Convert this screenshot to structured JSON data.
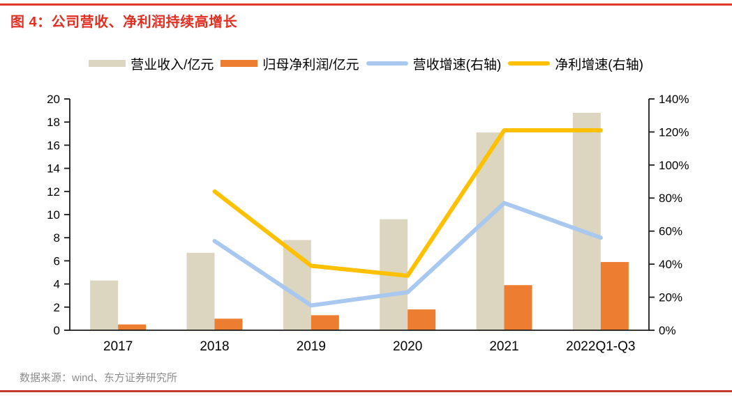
{
  "title": {
    "text": "图 4：公司营收、净利润持续高增长"
  },
  "legend": [
    {
      "id": "legend-revenue-bar",
      "label": "营业收入/亿元",
      "type": "bar",
      "color": "#dcd5bf"
    },
    {
      "id": "legend-net-profit-bar",
      "label": "归母净利润/亿元",
      "type": "bar",
      "color": "#ed7d31"
    },
    {
      "id": "legend-revenue-growth-line",
      "label": "营收增速(右轴)",
      "type": "line",
      "color": "#a9c8f0"
    },
    {
      "id": "legend-profit-growth-line",
      "label": "净利增速(右轴)",
      "type": "line",
      "color": "#ffc000"
    }
  ],
  "chart_data": {
    "type": "bar",
    "subtype": "combo-dual-axis",
    "categories": [
      "2017",
      "2018",
      "2019",
      "2020",
      "2021",
      "2022Q1-Q3"
    ],
    "series": [
      {
        "id": "revenue-bars",
        "name": "营业收入/亿元",
        "type": "bar",
        "axis": "left",
        "color": "#dcd5bf",
        "values": [
          4.3,
          6.7,
          7.8,
          9.6,
          17.1,
          18.8
        ]
      },
      {
        "id": "profit-bars",
        "name": "归母净利润/亿元",
        "type": "bar",
        "axis": "left",
        "color": "#ed7d31",
        "values": [
          0.5,
          1.0,
          1.3,
          1.8,
          3.9,
          5.9
        ]
      },
      {
        "id": "revenue-growth-line",
        "name": "营收增速(右轴)",
        "type": "line",
        "axis": "right",
        "color": "#a9c8f0",
        "values": [
          null,
          54,
          15,
          23,
          77,
          56
        ]
      },
      {
        "id": "profit-growth-line",
        "name": "净利增速(右轴)",
        "type": "line",
        "axis": "right",
        "color": "#ffc000",
        "values": [
          null,
          84,
          39,
          33,
          121,
          121
        ]
      }
    ],
    "left_axis": {
      "min": 0,
      "max": 20,
      "step": 2,
      "ticks": [
        "0",
        "2",
        "4",
        "6",
        "8",
        "10",
        "12",
        "14",
        "16",
        "18",
        "20"
      ]
    },
    "right_axis": {
      "min": 0,
      "max": 140,
      "step": 20,
      "ticks": [
        "0%",
        "20%",
        "40%",
        "60%",
        "80%",
        "100%",
        "120%",
        "140%"
      ]
    },
    "grid": false,
    "legend_position": "top"
  },
  "footer": {
    "source": "数据来源：wind、东方证券研究所"
  }
}
